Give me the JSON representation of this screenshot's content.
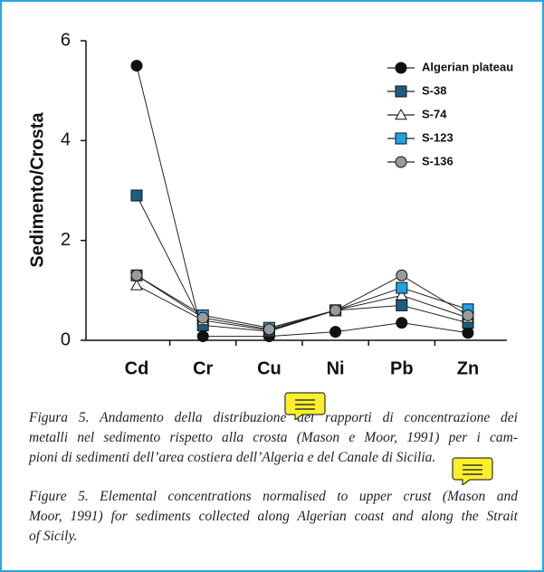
{
  "chart_data": {
    "type": "line",
    "ylabel": "Sedimento/Crosta",
    "categories": [
      "Cd",
      "Cr",
      "Cu",
      "Ni",
      "Pb",
      "Zn"
    ],
    "ylim": [
      0,
      6
    ],
    "yticks": [
      0,
      2,
      4,
      6
    ],
    "series": [
      {
        "name": "Algerian plateau",
        "color": "#111111",
        "marker": "circle",
        "values": [
          5.5,
          0.08,
          0.08,
          0.17,
          0.35,
          0.15
        ]
      },
      {
        "name": "S-38",
        "color": "#1b5e7e",
        "marker": "square",
        "values": [
          2.9,
          0.3,
          0.18,
          0.6,
          0.7,
          0.35
        ]
      },
      {
        "name": "S-74",
        "color": "#ffffff",
        "marker": "triangle",
        "values": [
          1.1,
          0.4,
          0.2,
          0.6,
          0.9,
          0.45
        ]
      },
      {
        "name": "S-123",
        "color": "#1ea3e0",
        "marker": "square",
        "values": [
          1.3,
          0.5,
          0.25,
          0.6,
          1.05,
          0.62
        ]
      },
      {
        "name": "S-136",
        "color": "#9a9a9a",
        "marker": "circle",
        "values": [
          1.3,
          0.45,
          0.22,
          0.6,
          1.3,
          0.5
        ]
      }
    ],
    "legend": "upper right"
  },
  "captions": [
    {
      "lines": [
        "Figura 5. Andamento della distribuzione dei rapporti di concentrazione dei",
        "metalli nel sedimento rispetto alla crosta (Mason e Moor, 1991) per i cam-",
        "pioni di sedimenti dell’area costiera dell’Algeria e del Canale di Sicilia."
      ]
    },
    {
      "lines": [
        "Figure 5. Elemental concentrations normalised to upper crust (Mason and",
        "Moor, 1991) for sediments collected along Algerian coast and along the Strait",
        "of Sicily."
      ]
    }
  ]
}
